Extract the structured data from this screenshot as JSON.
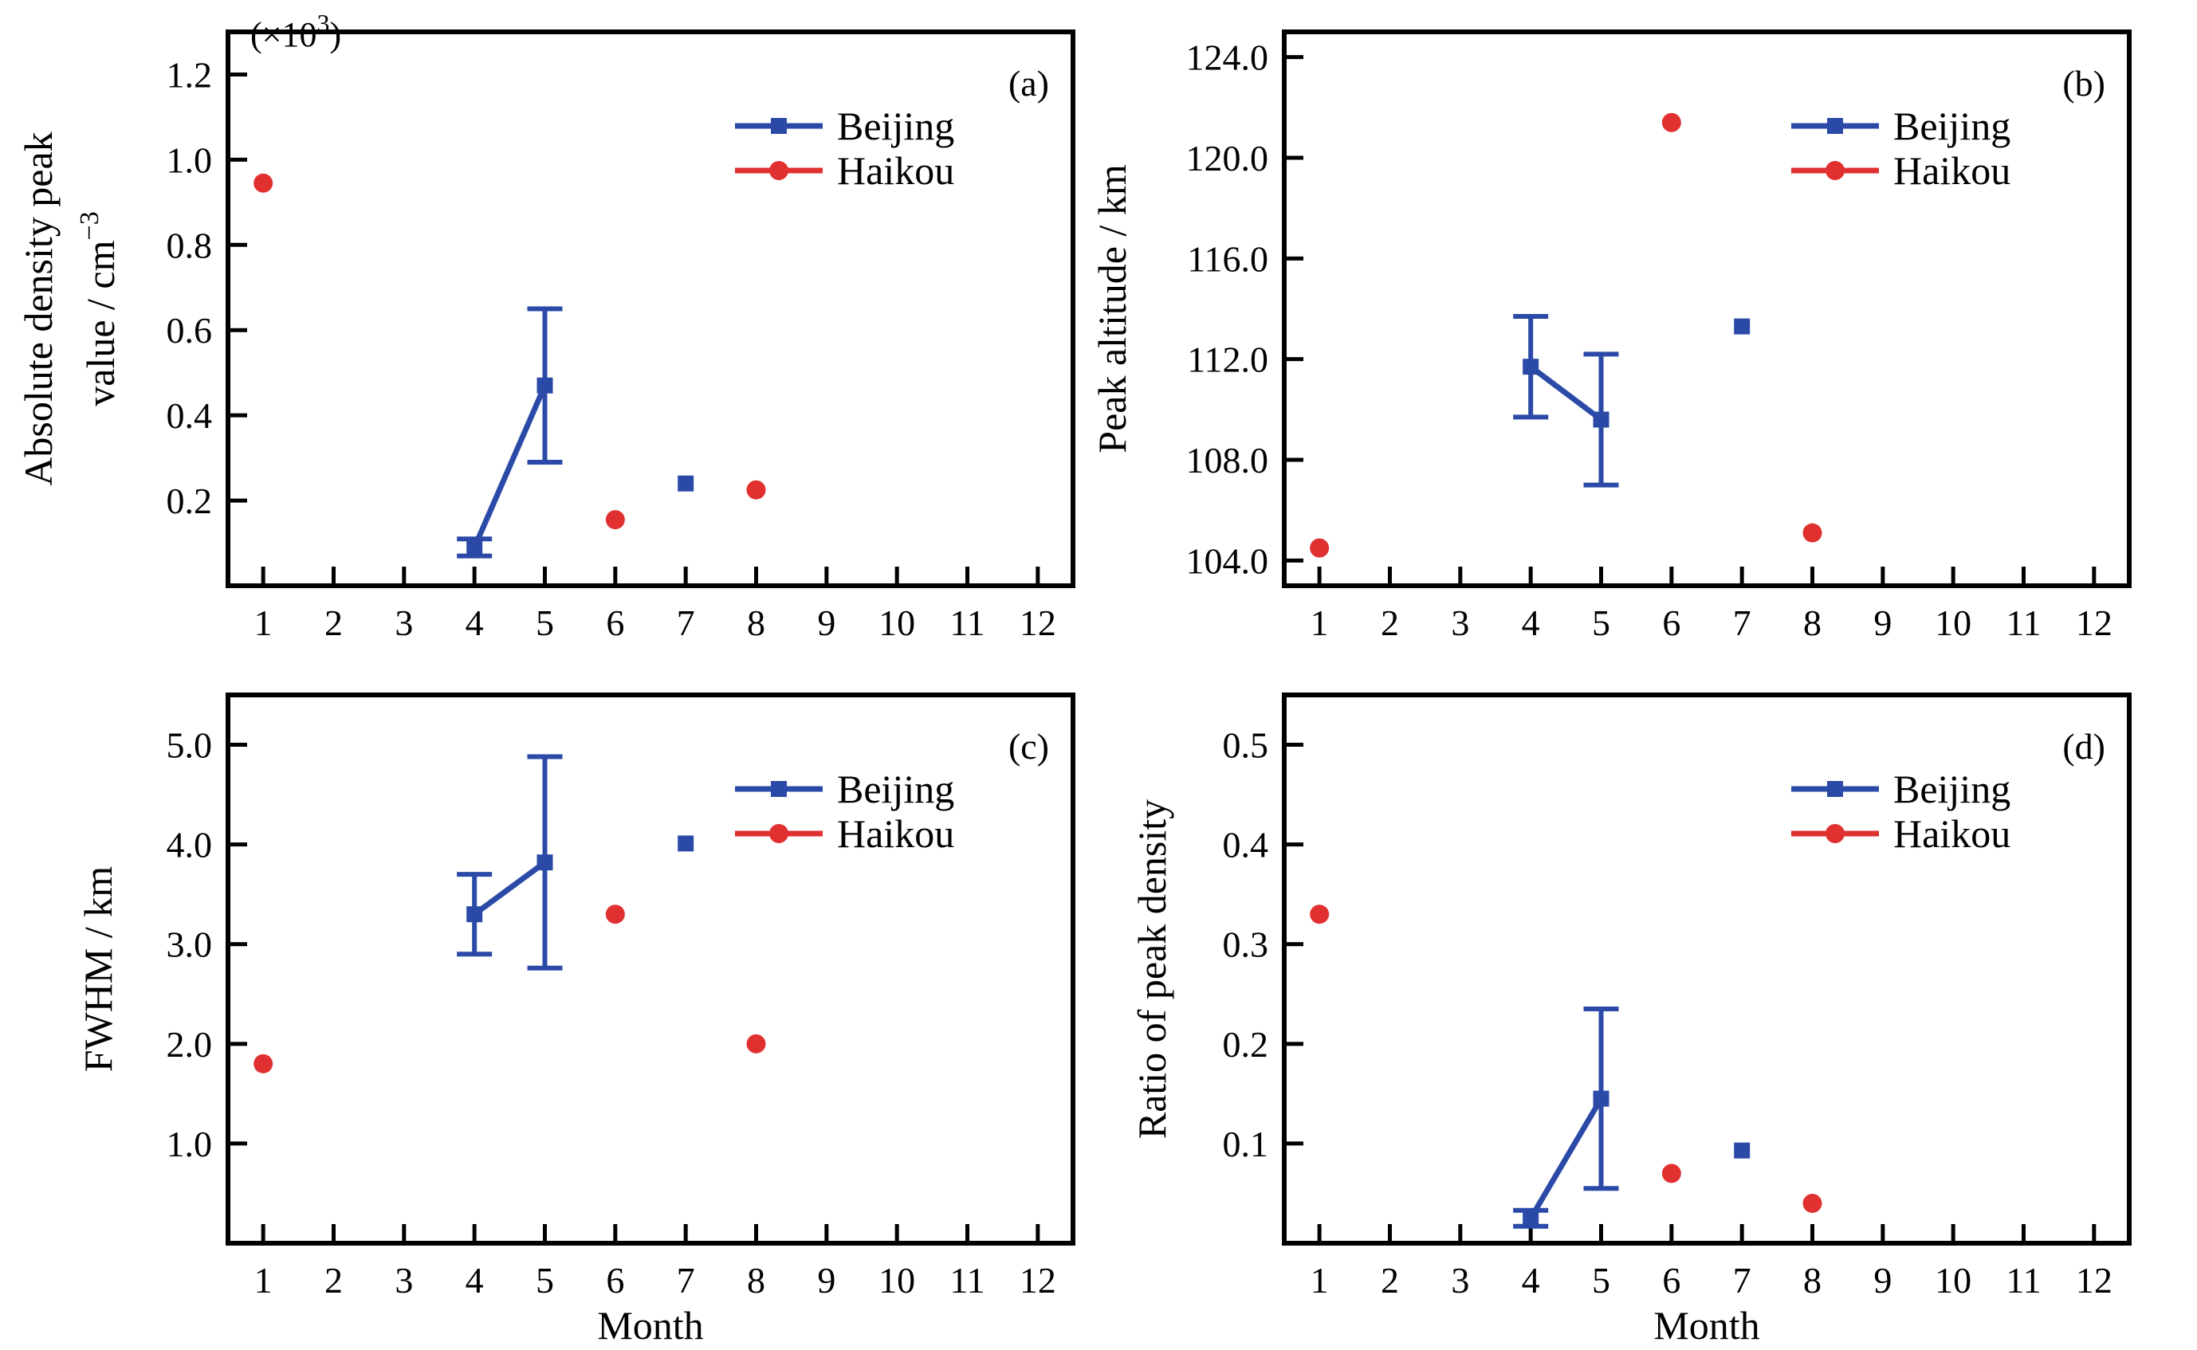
{
  "chart_data": [
    {
      "panel": "(a)",
      "type": "scatter",
      "multiplier": "(×10",
      "multiplier_exp": "3",
      "multiplier_close": ")",
      "xlabel": "",
      "ylabel_line1": "Absolute density peak",
      "ylabel_line2": "value / cm",
      "ylabel_line2_sup": "−3",
      "xticks": [
        1,
        2,
        3,
        4,
        5,
        6,
        7,
        8,
        9,
        10,
        11,
        12
      ],
      "yticks": [
        0.2,
        0.4,
        0.6,
        0.8,
        1.0,
        1.2
      ],
      "ytick_labels": [
        "0.2",
        "0.4",
        "0.6",
        "0.8",
        "1.0",
        "1.2"
      ],
      "xlim": [
        0.5,
        12.5
      ],
      "ylim": [
        0.0,
        1.3
      ],
      "legend": [
        "Beijing",
        "Haikou"
      ],
      "legend_position": "top-right",
      "series": [
        {
          "name": "Beijing",
          "color": "#2b4aa8",
          "marker": "square",
          "points": [
            {
              "x": 4,
              "y": 0.09,
              "err": 0.02
            },
            {
              "x": 5,
              "y": 0.47,
              "err": 0.18
            },
            {
              "x": 7,
              "y": 0.24,
              "err": null
            }
          ],
          "connected": [
            [
              4,
              5
            ]
          ]
        },
        {
          "name": "Haikou",
          "color": "#e03030",
          "marker": "circle",
          "points": [
            {
              "x": 1,
              "y": 0.945
            },
            {
              "x": 6,
              "y": 0.155
            },
            {
              "x": 8,
              "y": 0.225
            }
          ],
          "connected": []
        }
      ]
    },
    {
      "panel": "(b)",
      "type": "scatter",
      "xlabel": "",
      "ylabel_line1": "Peak altitude / km",
      "xticks": [
        1,
        2,
        3,
        4,
        5,
        6,
        7,
        8,
        9,
        10,
        11,
        12
      ],
      "yticks": [
        104,
        108,
        112,
        116,
        120,
        124
      ],
      "ytick_labels": [
        "104.0",
        "108.0",
        "112.0",
        "116.0",
        "120.0",
        "124.0"
      ],
      "xlim": [
        0.5,
        12.5
      ],
      "ylim": [
        103.0,
        125.0
      ],
      "legend": [
        "Beijing",
        "Haikou"
      ],
      "legend_position": "top-right",
      "series": [
        {
          "name": "Beijing",
          "color": "#2b4aa8",
          "marker": "square",
          "points": [
            {
              "x": 4,
              "y": 111.7,
              "err": 2.0
            },
            {
              "x": 5,
              "y": 109.6,
              "err": 2.6
            },
            {
              "x": 7,
              "y": 113.3,
              "err": null
            }
          ],
          "connected": [
            [
              4,
              5
            ]
          ]
        },
        {
          "name": "Haikou",
          "color": "#e03030",
          "marker": "circle",
          "points": [
            {
              "x": 1,
              "y": 104.5
            },
            {
              "x": 6,
              "y": 121.4
            },
            {
              "x": 8,
              "y": 105.1
            }
          ],
          "connected": []
        }
      ]
    },
    {
      "panel": "(c)",
      "type": "scatter",
      "xlabel": "Month",
      "ylabel_line1": "FWHM / km",
      "xticks": [
        1,
        2,
        3,
        4,
        5,
        6,
        7,
        8,
        9,
        10,
        11,
        12
      ],
      "yticks": [
        1,
        2,
        3,
        4,
        5
      ],
      "ytick_labels": [
        "1.0",
        "2.0",
        "3.0",
        "4.0",
        "5.0"
      ],
      "xlim": [
        0.5,
        12.5
      ],
      "ylim": [
        0.0,
        5.5
      ],
      "legend": [
        "Beijing",
        "Haikou"
      ],
      "legend_position": "top-right",
      "series": [
        {
          "name": "Beijing",
          "color": "#2b4aa8",
          "marker": "square",
          "points": [
            {
              "x": 4,
              "y": 3.3,
              "err": 0.4
            },
            {
              "x": 5,
              "y": 3.82,
              "err": 1.06
            },
            {
              "x": 7,
              "y": 4.01,
              "err": null
            }
          ],
          "connected": [
            [
              4,
              5
            ]
          ]
        },
        {
          "name": "Haikou",
          "color": "#e03030",
          "marker": "circle",
          "points": [
            {
              "x": 1,
              "y": 1.8
            },
            {
              "x": 6,
              "y": 3.3
            },
            {
              "x": 8,
              "y": 2.0
            }
          ],
          "connected": []
        }
      ]
    },
    {
      "panel": "(d)",
      "type": "scatter",
      "xlabel": "Month",
      "ylabel_line1": "Ratio of peak density",
      "xticks": [
        1,
        2,
        3,
        4,
        5,
        6,
        7,
        8,
        9,
        10,
        11,
        12
      ],
      "yticks": [
        0.1,
        0.2,
        0.3,
        0.4,
        0.5
      ],
      "ytick_labels": [
        "0.1",
        "0.2",
        "0.3",
        "0.4",
        "0.5"
      ],
      "xlim": [
        0.5,
        12.5
      ],
      "ylim": [
        0.0,
        0.55
      ],
      "legend": [
        "Beijing",
        "Haikou"
      ],
      "legend_position": "top-right",
      "series": [
        {
          "name": "Beijing",
          "color": "#2b4aa8",
          "marker": "square",
          "points": [
            {
              "x": 4,
              "y": 0.025,
              "err": 0.008
            },
            {
              "x": 5,
              "y": 0.145,
              "err": 0.09
            },
            {
              "x": 7,
              "y": 0.093,
              "err": null
            }
          ],
          "connected": [
            [
              4,
              5
            ]
          ]
        },
        {
          "name": "Haikou",
          "color": "#e03030",
          "marker": "circle",
          "points": [
            {
              "x": 1,
              "y": 0.33
            },
            {
              "x": 6,
              "y": 0.07
            },
            {
              "x": 8,
              "y": 0.04
            }
          ],
          "connected": []
        }
      ]
    }
  ]
}
